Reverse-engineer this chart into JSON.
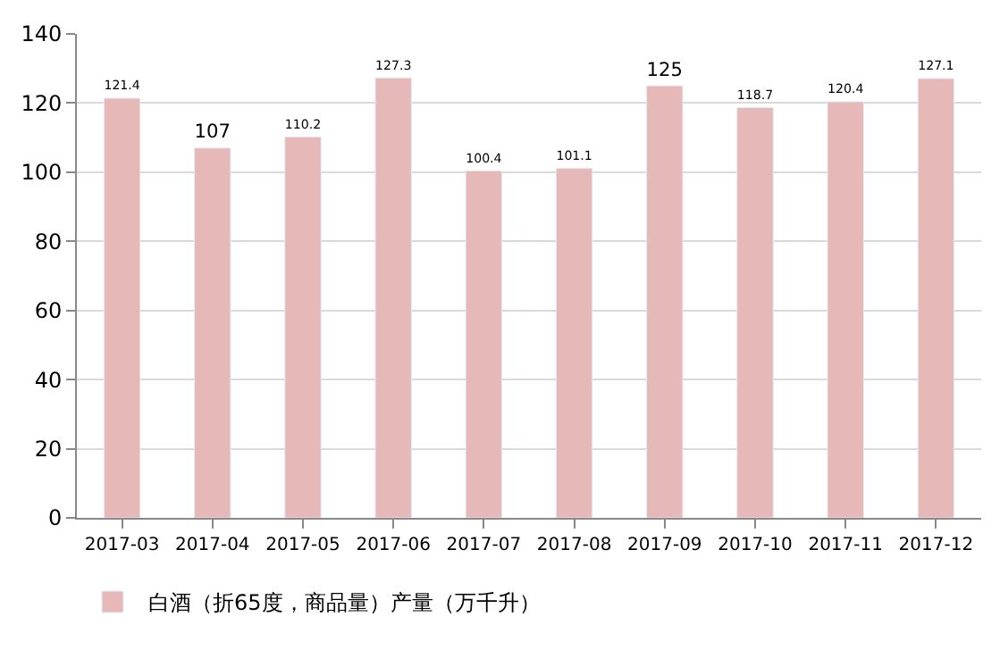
{
  "chart_data": {
    "type": "bar",
    "categories": [
      "2017-03",
      "2017-04",
      "2017-05",
      "2017-06",
      "2017-07",
      "2017-08",
      "2017-09",
      "2017-10",
      "2017-11",
      "2017-12"
    ],
    "series": [
      {
        "name": "白酒（折65度，商品量）产量（万千升）",
        "color": "#e6b9b8",
        "values": [
          121.4,
          107,
          110.2,
          127.3,
          100.4,
          101.1,
          125,
          118.7,
          120.4,
          127.1
        ]
      }
    ],
    "ylim": [
      0,
      140
    ],
    "yticks": [
      0,
      20,
      40,
      60,
      80,
      100,
      120,
      140
    ],
    "grid": "y",
    "legend": "bottom left",
    "data_labels": true
  }
}
